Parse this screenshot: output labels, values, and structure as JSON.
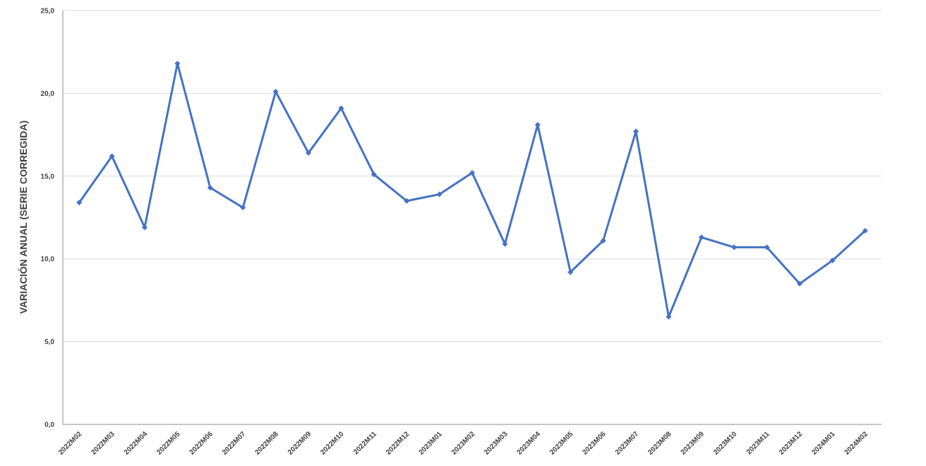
{
  "chart_data": {
    "type": "line",
    "ylabel": "VARIACIÓN ANUAL (SERIE CORREGIDA)",
    "xlabel": "",
    "ylim": [
      0,
      25
    ],
    "y_ticks": [
      "0,0",
      "5,0",
      "10,0",
      "15,0",
      "20,0",
      "25,0"
    ],
    "y_tick_values": [
      0,
      5,
      10,
      15,
      20,
      25
    ],
    "grid": true,
    "legend": "none",
    "categories": [
      "2022M02",
      "2022M03",
      "2022M04",
      "2022M05",
      "2022M06",
      "2022M07",
      "2022M08",
      "2022M09",
      "2022M10",
      "2022M11",
      "2022M12",
      "2023M01",
      "2023M02",
      "2023M03",
      "2023M04",
      "2023M05",
      "2023M06",
      "2023M07",
      "2023M08",
      "2023M09",
      "2023M10",
      "2023M11",
      "2023M12",
      "2024M01",
      "2024M02"
    ],
    "series": [
      {
        "color": "#4472c4",
        "marker": "diamond",
        "values": [
          13.4,
          16.2,
          11.9,
          21.8,
          14.3,
          13.1,
          20.1,
          16.4,
          19.1,
          15.1,
          13.5,
          13.9,
          15.2,
          10.9,
          18.1,
          9.2,
          11.1,
          17.7,
          6.5,
          11.3,
          10.7,
          10.7,
          8.5,
          9.9,
          11.7
        ]
      }
    ]
  }
}
